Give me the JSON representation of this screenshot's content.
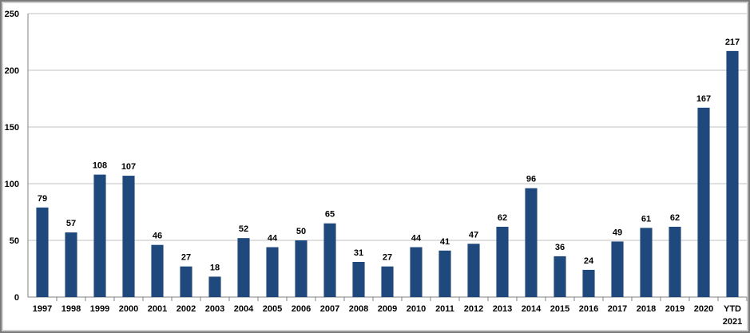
{
  "chart_data": {
    "type": "bar",
    "categories": [
      "1997",
      "1998",
      "1999",
      "2000",
      "2001",
      "2002",
      "2003",
      "2004",
      "2005",
      "2006",
      "2007",
      "2008",
      "2009",
      "2010",
      "2011",
      "2012",
      "2013",
      "2014",
      "2015",
      "2016",
      "2017",
      "2018",
      "2019",
      "2020",
      "YTD 2021"
    ],
    "category_lines": [
      [
        "1997"
      ],
      [
        "1998"
      ],
      [
        "1999"
      ],
      [
        "2000"
      ],
      [
        "2001"
      ],
      [
        "2002"
      ],
      [
        "2003"
      ],
      [
        "2004"
      ],
      [
        "2005"
      ],
      [
        "2006"
      ],
      [
        "2007"
      ],
      [
        "2008"
      ],
      [
        "2009"
      ],
      [
        "2010"
      ],
      [
        "2011"
      ],
      [
        "2012"
      ],
      [
        "2013"
      ],
      [
        "2014"
      ],
      [
        "2015"
      ],
      [
        "2016"
      ],
      [
        "2017"
      ],
      [
        "2018"
      ],
      [
        "2019"
      ],
      [
        "2020"
      ],
      [
        "YTD",
        "2021"
      ]
    ],
    "values": [
      79,
      57,
      108,
      107,
      46,
      27,
      18,
      52,
      44,
      50,
      65,
      31,
      27,
      44,
      41,
      47,
      62,
      96,
      36,
      24,
      49,
      61,
      62,
      167,
      217
    ],
    "ylim": [
      0,
      250
    ],
    "yticks": [
      0,
      50,
      100,
      150,
      200,
      250
    ],
    "grid": true,
    "bar_color": "#1f497d",
    "grid_color": "#c0c0c0",
    "title": "",
    "xlabel": "",
    "ylabel": ""
  }
}
